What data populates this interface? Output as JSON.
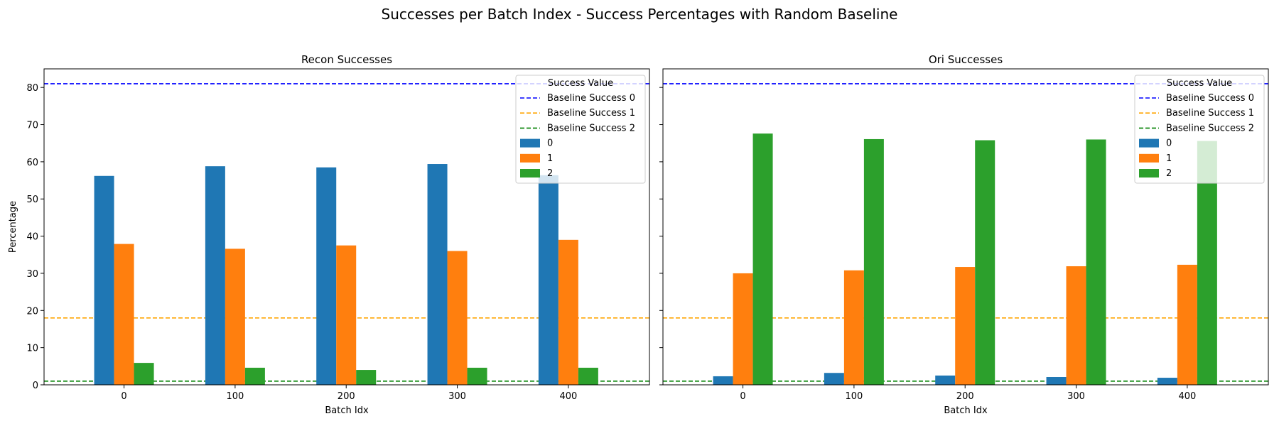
{
  "figure_title": "Successes per Batch Index - Success Percentages with Random Baseline",
  "colors": {
    "series_0": "#1f77b4",
    "series_1": "#ff7f0e",
    "series_2": "#2ca02c",
    "baseline_0": "#0000ff",
    "baseline_1": "#ffa500",
    "baseline_2": "#008000"
  },
  "chart_data": [
    {
      "type": "bar",
      "title": "Recon Successes",
      "xlabel": "Batch Idx",
      "ylabel": "Percentage",
      "categories": [
        "0",
        "100",
        "200",
        "300",
        "400"
      ],
      "ylim": [
        0,
        85
      ],
      "yticks": [
        0,
        10,
        20,
        30,
        40,
        50,
        60,
        70,
        80
      ],
      "grid": false,
      "legend_position": "top-right",
      "legend_title": "Success Value",
      "series": [
        {
          "name": "0",
          "values": [
            56.2,
            58.8,
            58.5,
            59.4,
            56.4
          ]
        },
        {
          "name": "1",
          "values": [
            37.9,
            36.6,
            37.5,
            36.0,
            39.0
          ]
        },
        {
          "name": "2",
          "values": [
            5.9,
            4.6,
            4.0,
            4.6,
            4.6
          ]
        }
      ],
      "baselines": [
        {
          "name": "Baseline Success 0",
          "value": 81.0
        },
        {
          "name": "Baseline Success 1",
          "value": 18.0
        },
        {
          "name": "Baseline Success 2",
          "value": 1.0
        }
      ]
    },
    {
      "type": "bar",
      "title": "Ori Successes",
      "xlabel": "Batch Idx",
      "ylabel": "",
      "categories": [
        "0",
        "100",
        "200",
        "300",
        "400"
      ],
      "ylim": [
        0,
        85
      ],
      "yticks": [
        0,
        10,
        20,
        30,
        40,
        50,
        60,
        70,
        80
      ],
      "grid": false,
      "legend_position": "top-right",
      "legend_title": "Success Value",
      "series": [
        {
          "name": "0",
          "values": [
            2.3,
            3.2,
            2.5,
            2.1,
            1.9
          ]
        },
        {
          "name": "1",
          "values": [
            30.0,
            30.8,
            31.7,
            31.9,
            32.3
          ]
        },
        {
          "name": "2",
          "values": [
            67.6,
            66.1,
            65.8,
            66.0,
            65.6
          ]
        }
      ],
      "baselines": [
        {
          "name": "Baseline Success 0",
          "value": 81.0
        },
        {
          "name": "Baseline Success 1",
          "value": 18.0
        },
        {
          "name": "Baseline Success 2",
          "value": 1.0
        }
      ]
    }
  ]
}
